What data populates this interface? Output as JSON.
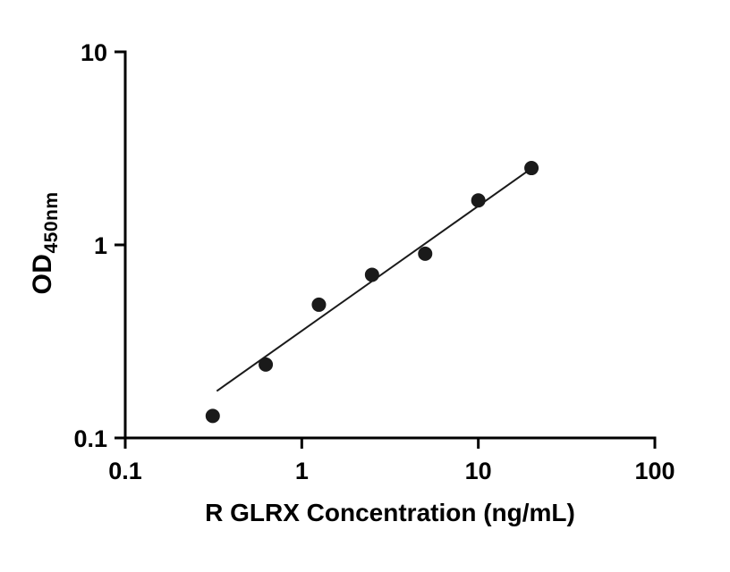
{
  "figure": {
    "background": "#ffffff",
    "axis_color": "#000000",
    "marker_color": "#1a1a1a",
    "line_color": "#1a1a1a"
  },
  "chart_data": {
    "type": "scatter",
    "title": "",
    "xlabel": "R GLRX Concentration (ng/mL)",
    "ylabel": "OD",
    "ylabel_sub": "450nm",
    "x_scale": "log",
    "y_scale": "log",
    "xlim": [
      0.1,
      100
    ],
    "ylim": [
      0.1,
      10
    ],
    "x_ticks": [
      0.1,
      1,
      10,
      100
    ],
    "x_tick_labels": [
      "0.1",
      "1",
      "10",
      "100"
    ],
    "y_ticks": [
      0.1,
      1,
      10
    ],
    "y_tick_labels": [
      "0.1",
      "1",
      "10"
    ],
    "grid": false,
    "legend": "none",
    "series": [
      {
        "name": "fit-line",
        "type": "line",
        "color": "#1a1a1a",
        "points": [
          {
            "x": 0.33,
            "y": 0.175
          },
          {
            "x": 19.5,
            "y": 2.45
          }
        ]
      },
      {
        "name": "standards",
        "type": "scatter",
        "marker": "circle",
        "color": "#1a1a1a",
        "points": [
          {
            "x": 0.313,
            "y": 0.13
          },
          {
            "x": 0.625,
            "y": 0.24
          },
          {
            "x": 1.25,
            "y": 0.49
          },
          {
            "x": 2.5,
            "y": 0.7
          },
          {
            "x": 5,
            "y": 0.9
          },
          {
            "x": 10,
            "y": 1.7
          },
          {
            "x": 20,
            "y": 2.5
          }
        ]
      }
    ]
  }
}
